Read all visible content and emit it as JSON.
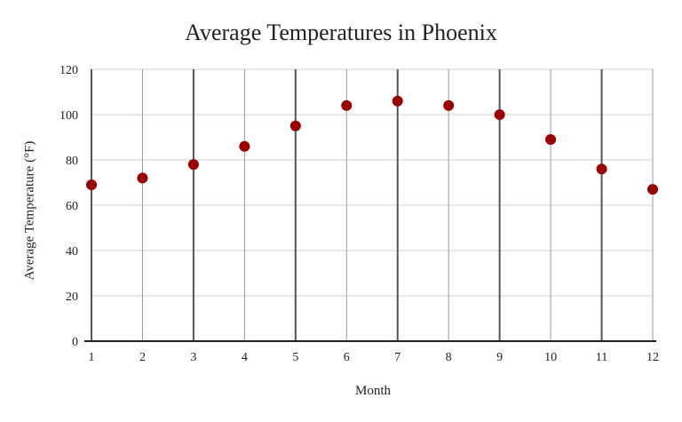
{
  "chart_data": {
    "type": "scatter",
    "title": "Average Temperatures in Phoenix",
    "xlabel": "Month",
    "ylabel": "Average Temperature (°F)",
    "x": [
      1,
      2,
      3,
      4,
      5,
      6,
      7,
      8,
      9,
      10,
      11,
      12
    ],
    "y": [
      69,
      72,
      78,
      86,
      95,
      104,
      106,
      104,
      100,
      89,
      76,
      67
    ],
    "xlim": [
      1,
      12
    ],
    "ylim": [
      0,
      120
    ],
    "x_ticks": [
      1,
      2,
      3,
      4,
      5,
      6,
      7,
      8,
      9,
      10,
      11,
      12
    ],
    "y_ticks": [
      0,
      20,
      40,
      60,
      80,
      100,
      120
    ],
    "grid": true,
    "legend": "none",
    "marker_color": "#990000"
  }
}
